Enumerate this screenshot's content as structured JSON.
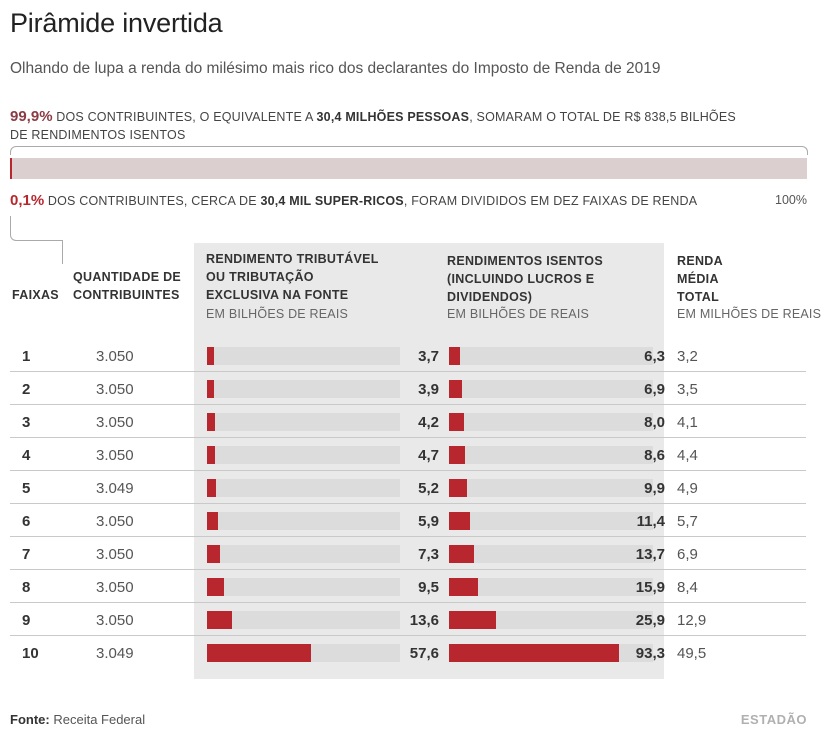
{
  "title": "Pirâmide invertida",
  "subtitle": "Olhando de lupa a renda do milésimo mais rico dos declarantes do Imposto de Renda de 2019",
  "top_note": {
    "pct": "99,9%",
    "pct_color": "#8a3b44",
    "text1": " DOS CONTRIBUINTES, O EQUIVALENTE A ",
    "bold": "30,4 MILHÕES PESSOAS",
    "text2": ", SOMARAM O TOTAL DE R$ 838,5 BILHÕES",
    "line2": "DE RENDIMENTOS ISENTOS"
  },
  "bottom_note": {
    "pct": "0,1%",
    "pct_color": "#b8262e",
    "text1": " DOS CONTRIBUINTES, CERCA DE ",
    "bold": "30,4 MIL SUPER-RICOS",
    "text2": ", FORAM DIVIDIDOS EM DEZ FAIXAS DE RENDA"
  },
  "scale_end_label": "100%",
  "top_bar_share": 0.001,
  "colors": {
    "accent": "#b8262e",
    "muted_accent": "#dccfcf",
    "track": "#dcdcdc",
    "panel": "#e9e9e9"
  },
  "headers": {
    "faixas": "FAIXAS",
    "quantidade": [
      "QUANTIDADE DE",
      "CONTRIBUINTES"
    ],
    "tributavel": [
      "RENDIMENTO TRIBUTÁVEL",
      "OU TRIBUTAÇÃO",
      "EXCLUSIVA NA FONTE"
    ],
    "tributavel_unit": "EM BILHÕES DE REAIS",
    "isentos": [
      "RENDIMENTOS ISENTOS",
      "(INCLUINDO LUCROS E",
      "DIVIDENDOS)"
    ],
    "isentos_unit": "EM BILHÕES DE REAIS",
    "renda": [
      "RENDA",
      "MÉDIA",
      "TOTAL"
    ],
    "renda_unit": "EM MILHÕES DE REAIS"
  },
  "chart_data": {
    "type": "bar",
    "title": "Pirâmide invertida",
    "categories": [
      "1",
      "2",
      "3",
      "4",
      "5",
      "6",
      "7",
      "8",
      "9",
      "10"
    ],
    "quantidade": [
      "3.050",
      "3.050",
      "3.050",
      "3.050",
      "3.049",
      "3.050",
      "3.050",
      "3.050",
      "3.050",
      "3.049"
    ],
    "series": [
      {
        "name": "Rendimento tributável ou tributação exclusiva na fonte (em bilhões de reais)",
        "values": [
          3.7,
          3.9,
          4.2,
          4.7,
          5.2,
          5.9,
          7.3,
          9.5,
          13.6,
          57.6
        ],
        "labels": [
          "3,7",
          "3,9",
          "4,2",
          "4,7",
          "5,2",
          "5,9",
          "7,3",
          "9,5",
          "13,6",
          "57,6"
        ],
        "max": 100
      },
      {
        "name": "Rendimentos isentos (incluindo lucros e dividendos) (em bilhões de reais)",
        "values": [
          6.3,
          6.9,
          8.0,
          8.6,
          9.9,
          11.4,
          13.7,
          15.9,
          25.9,
          93.3
        ],
        "labels": [
          "6,3",
          "6,9",
          "8,0",
          "8,6",
          "9,9",
          "11,4",
          "13,7",
          "15,9",
          "25,9",
          "93,3"
        ],
        "max": 100
      }
    ],
    "renda_media_total": [
      "3,2",
      "3,5",
      "4,1",
      "4,4",
      "4,9",
      "5,7",
      "6,9",
      "8,4",
      "12,9",
      "49,5"
    ]
  },
  "footer": {
    "label": "Fonte:",
    "source": "Receita Federal"
  },
  "logo": "ESTADÃO"
}
